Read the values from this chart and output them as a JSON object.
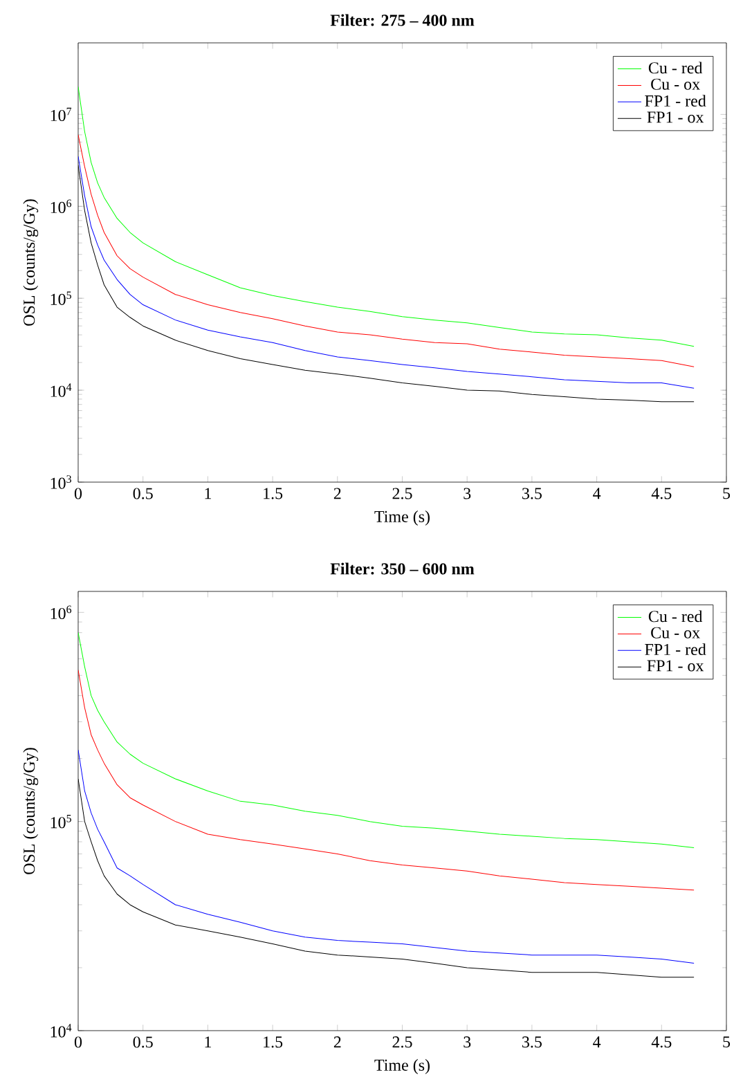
{
  "chart_data": [
    {
      "type": "line",
      "title": "**Filter: 275 – 400 nm**",
      "xlabel": "Time (s)",
      "ylabel": "OSL (counts/g/Gy)",
      "log": "y",
      "legend": "top right",
      "grid": false,
      "xlim": [
        0,
        5
      ],
      "ylim": [
        1000,
        60000000
      ],
      "xticks": [
        0,
        0.5,
        1,
        1.5,
        2,
        2.5,
        3,
        3.5,
        4,
        4.5,
        5
      ],
      "yticks": [
        {
          "value": 1000,
          "label": "10$^{3}$"
        },
        {
          "value": 10000,
          "label": "10$^{4}$"
        },
        {
          "value": 100000,
          "label": "10$^{5}$"
        },
        {
          "value": 1000000,
          "label": "10$^{6}$"
        },
        {
          "value": 10000000,
          "label": "10$^{7}$"
        }
      ],
      "x": [
        0,
        0.05,
        0.1,
        0.15,
        0.2,
        0.3,
        0.4,
        0.5,
        0.75,
        1,
        1.25,
        1.5,
        1.75,
        2,
        2.25,
        2.5,
        2.75,
        3,
        3.25,
        3.5,
        3.75,
        4,
        4.25,
        4.5,
        4.75
      ],
      "series": [
        {
          "name": "Cu - red",
          "color": "#00ff00",
          "values": [
            20000000,
            6500000,
            3000000,
            1800000,
            1250000,
            740000,
            520000,
            400000,
            250000,
            180000,
            130000,
            107000,
            92000,
            80000,
            72000,
            63000,
            58000,
            54000,
            48000,
            43000,
            41000,
            40000,
            37000,
            35000,
            30000
          ]
        },
        {
          "name": "Cu - ox",
          "color": "#ff0000",
          "values": [
            6000000,
            2700000,
            1350000,
            800000,
            520000,
            290000,
            210000,
            170000,
            110000,
            85000,
            70000,
            60000,
            50000,
            43000,
            40000,
            36000,
            33000,
            32000,
            28000,
            26000,
            24000,
            23000,
            22000,
            21000,
            18000
          ]
        },
        {
          "name": "FP1 - red",
          "color": "#0000ff",
          "values": [
            3500000,
            1300000,
            600000,
            380000,
            260000,
            160000,
            110000,
            85000,
            58000,
            45000,
            38000,
            33000,
            27000,
            23000,
            21000,
            19000,
            17500,
            16000,
            15000,
            14000,
            13000,
            12500,
            12000,
            12000,
            10500
          ]
        },
        {
          "name": "FP1 - ox",
          "color": "#000000",
          "values": [
            2800000,
            900000,
            400000,
            230000,
            140000,
            80000,
            62000,
            50000,
            35000,
            27000,
            22000,
            19000,
            16500,
            15000,
            13500,
            12000,
            11000,
            10000,
            9800,
            9000,
            8500,
            8000,
            7800,
            7500,
            7500
          ]
        }
      ]
    },
    {
      "type": "line",
      "title": "**Filter: 350 – 600 nm**",
      "xlabel": "Time (s)",
      "ylabel": "OSL (counts/g/Gy)",
      "log": "y",
      "legend": "top right",
      "grid": false,
      "xlim": [
        0,
        5
      ],
      "ylim": [
        10000,
        1260000
      ],
      "xticks": [
        0,
        0.5,
        1,
        1.5,
        2,
        2.5,
        3,
        3.5,
        4,
        4.5,
        5
      ],
      "yticks": [
        {
          "value": 10000,
          "label": "10$^{4}$"
        },
        {
          "value": 100000,
          "label": "10$^{5}$"
        },
        {
          "value": 1000000,
          "label": "10$^{6}$"
        }
      ],
      "x": [
        0,
        0.05,
        0.1,
        0.15,
        0.2,
        0.3,
        0.4,
        0.5,
        0.75,
        1,
        1.25,
        1.5,
        1.75,
        2,
        2.25,
        2.5,
        2.75,
        3,
        3.25,
        3.5,
        3.75,
        4,
        4.25,
        4.5,
        4.75
      ],
      "series": [
        {
          "name": "Cu - red",
          "color": "#00ff00",
          "values": [
            800000,
            550000,
            400000,
            340000,
            300000,
            240000,
            210000,
            190000,
            160000,
            140000,
            125000,
            120000,
            112000,
            107000,
            100000,
            95000,
            93000,
            90000,
            87000,
            85000,
            83000,
            82000,
            80000,
            78000,
            75000
          ]
        },
        {
          "name": "Cu - ox",
          "color": "#ff0000",
          "values": [
            530000,
            350000,
            260000,
            220000,
            190000,
            150000,
            130000,
            120000,
            100000,
            87000,
            82000,
            78000,
            74000,
            70000,
            65000,
            62000,
            60000,
            58000,
            55000,
            53000,
            51000,
            50000,
            49000,
            48000,
            47000
          ]
        },
        {
          "name": "FP1 - red",
          "color": "#0000ff",
          "values": [
            220000,
            140000,
            110000,
            92000,
            80000,
            60000,
            55000,
            50000,
            40000,
            36000,
            33000,
            30000,
            28000,
            27000,
            26500,
            26000,
            25000,
            24000,
            23500,
            23000,
            23000,
            23000,
            22500,
            22000,
            21000
          ]
        },
        {
          "name": "FP1 - ox",
          "color": "#000000",
          "values": [
            160000,
            100000,
            80000,
            65000,
            55000,
            45000,
            40000,
            37000,
            32000,
            30000,
            28000,
            26000,
            24000,
            23000,
            22500,
            22000,
            21000,
            20000,
            19500,
            19000,
            19000,
            19000,
            18500,
            18000,
            18000
          ]
        }
      ]
    }
  ]
}
